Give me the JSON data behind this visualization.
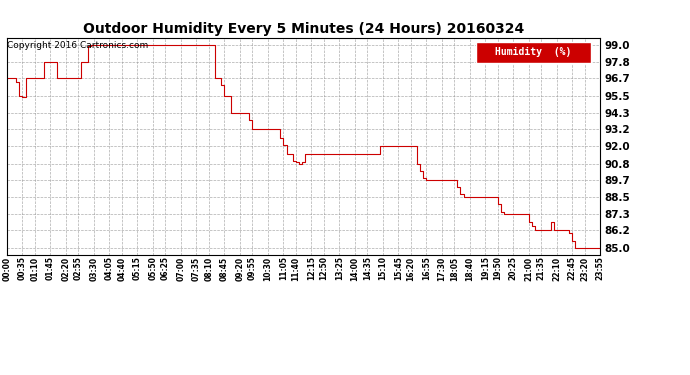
{
  "title": "Outdoor Humidity Every 5 Minutes (24 Hours) 20160324",
  "copyright_text": "Copyright 2016 Cartronics.com",
  "legend_label": "Humidity  (%)",
  "legend_bg": "#cc0000",
  "legend_fg": "#ffffff",
  "line_color": "#cc0000",
  "background_color": "#ffffff",
  "grid_color": "#999999",
  "yticks": [
    85.0,
    86.2,
    87.3,
    88.5,
    89.7,
    90.8,
    92.0,
    93.2,
    94.3,
    95.5,
    96.7,
    97.8,
    99.0
  ],
  "ylim": [
    84.5,
    99.5
  ],
  "humidity_data": [
    96.7,
    96.7,
    96.7,
    96.4,
    95.5,
    95.4,
    96.7,
    96.7,
    96.7,
    96.7,
    96.7,
    96.7,
    97.8,
    97.8,
    97.8,
    97.8,
    96.7,
    96.7,
    96.7,
    96.7,
    96.7,
    96.7,
    96.7,
    96.7,
    97.8,
    97.8,
    98.9,
    99.0,
    99.0,
    99.0,
    99.0,
    99.0,
    99.0,
    99.0,
    99.0,
    99.0,
    99.0,
    99.0,
    99.0,
    99.0,
    99.0,
    99.0,
    99.0,
    99.0,
    99.0,
    99.0,
    99.0,
    99.0,
    99.0,
    99.0,
    99.0,
    99.0,
    99.0,
    99.0,
    99.0,
    99.0,
    99.0,
    99.0,
    99.0,
    99.0,
    99.0,
    99.0,
    99.0,
    99.0,
    99.0,
    99.0,
    99.0,
    96.7,
    96.7,
    96.2,
    95.5,
    95.5,
    94.3,
    94.3,
    94.3,
    94.3,
    94.3,
    94.3,
    93.8,
    93.2,
    93.2,
    93.2,
    93.2,
    93.2,
    93.2,
    93.2,
    93.2,
    93.2,
    92.6,
    92.1,
    91.5,
    91.5,
    91.0,
    90.9,
    90.8,
    90.9,
    91.5,
    91.5,
    91.5,
    91.5,
    91.5,
    91.5,
    91.5,
    91.5,
    91.5,
    91.5,
    91.5,
    91.5,
    91.5,
    91.5,
    91.5,
    91.5,
    91.5,
    91.5,
    91.5,
    91.5,
    91.5,
    91.5,
    91.5,
    91.5,
    92.0,
    92.0,
    92.0,
    92.0,
    92.0,
    92.0,
    92.0,
    92.0,
    92.0,
    92.0,
    92.0,
    92.0,
    90.8,
    90.3,
    89.8,
    89.7,
    89.7,
    89.7,
    89.7,
    89.7,
    89.7,
    89.7,
    89.7,
    89.7,
    89.7,
    89.2,
    88.7,
    88.5,
    88.5,
    88.5,
    88.5,
    88.5,
    88.5,
    88.5,
    88.5,
    88.5,
    88.5,
    88.5,
    88.0,
    87.5,
    87.3,
    87.3,
    87.3,
    87.3,
    87.3,
    87.3,
    87.3,
    87.3,
    86.8,
    86.5,
    86.2,
    86.2,
    86.2,
    86.2,
    86.2,
    86.8,
    86.2,
    86.2,
    86.2,
    86.2,
    86.2,
    86.0,
    85.5,
    85.0,
    85.0,
    85.0,
    85.0,
    85.0,
    85.0,
    85.0,
    85.0,
    85.0
  ],
  "xtick_labels": [
    "00:00",
    "00:35",
    "01:10",
    "01:45",
    "02:20",
    "02:55",
    "03:30",
    "04:05",
    "04:40",
    "05:15",
    "05:50",
    "06:25",
    "07:00",
    "07:35",
    "08:10",
    "08:45",
    "09:20",
    "09:55",
    "10:30",
    "11:05",
    "11:40",
    "12:15",
    "12:50",
    "13:25",
    "14:00",
    "14:35",
    "15:10",
    "15:45",
    "16:20",
    "16:55",
    "17:30",
    "18:05",
    "18:40",
    "19:15",
    "19:50",
    "20:25",
    "21:00",
    "21:35",
    "22:10",
    "22:45",
    "23:20",
    "23:55"
  ]
}
